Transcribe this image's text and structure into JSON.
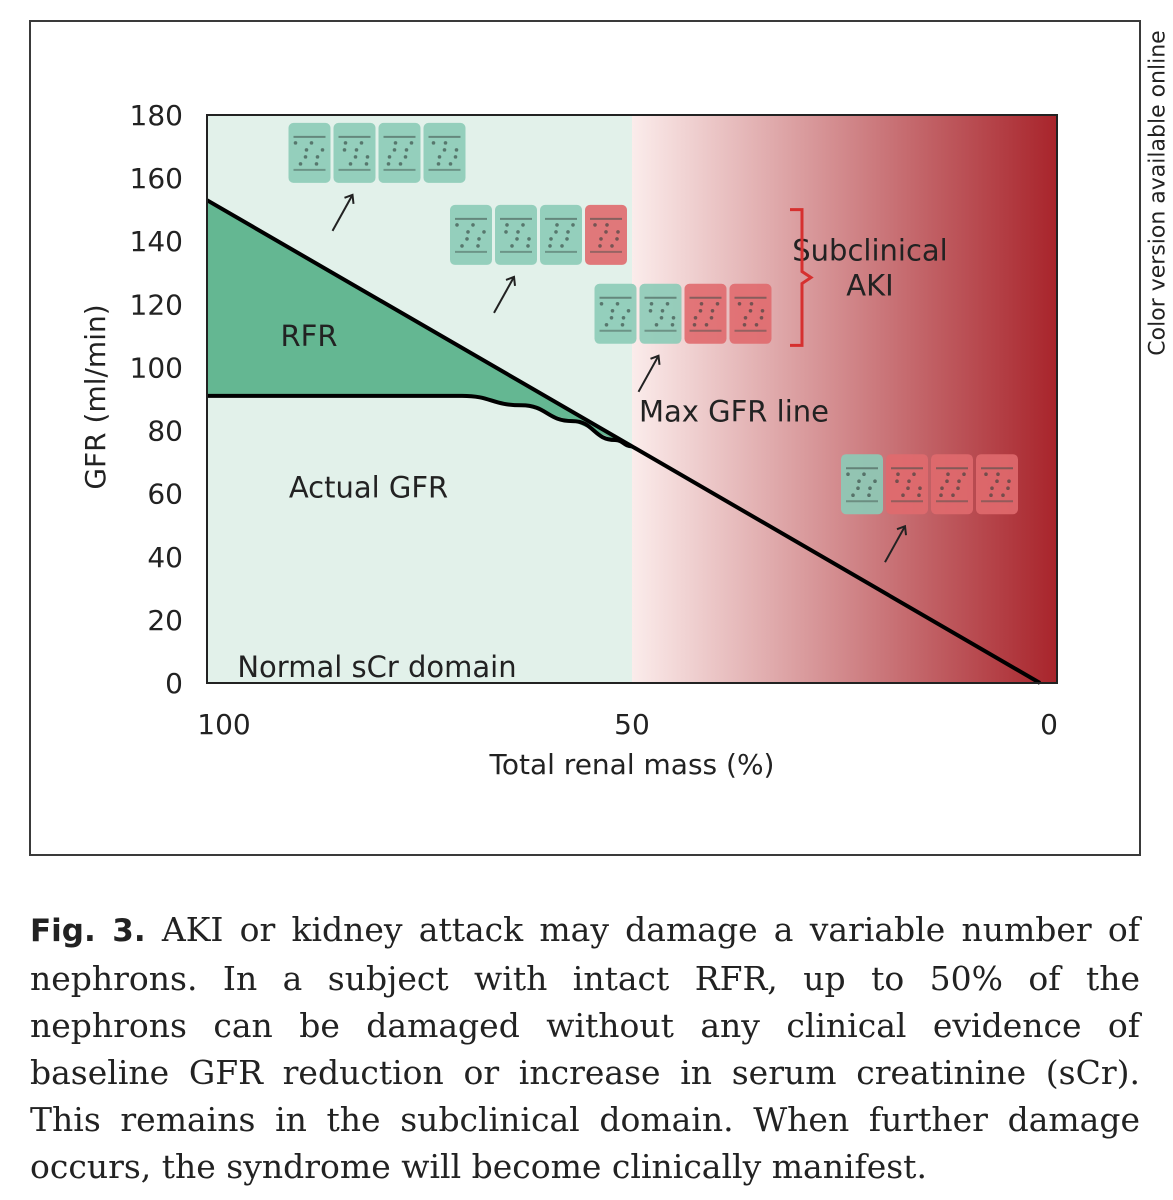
{
  "side_note": "Color version available online",
  "caption": {
    "label": "Fig. 3.",
    "text": " AKI or kidney attack may damage a variable number of nephrons. In a subject with intact RFR, up to 50% of the nephrons can be damaged without any clinical evidence of baseline GFR reduction or increase in serum creatinine (sCr). This remains in the subclinical domain. When further damage occurs, the syndrome will become clinically manifest."
  },
  "colors": {
    "normal_domain": "#e2f1ea",
    "damage_start": "#fbeceb",
    "damage_end": "#a8242b",
    "rfr_fill": "#64b792",
    "healthy_nephron": "#8ccbb7",
    "damaged_nephron": "#e06a6e",
    "bracket": "#d6302f"
  },
  "chart_data": {
    "type": "line",
    "title": "",
    "xlabel": "Total renal mass (%)",
    "ylabel": "GFR (ml/min)",
    "xlim": [
      100,
      0
    ],
    "ylim": [
      0,
      180
    ],
    "x_ticks": [
      100,
      50,
      0
    ],
    "y_ticks": [
      0,
      20,
      40,
      60,
      80,
      100,
      120,
      140,
      160,
      180
    ],
    "grid": false,
    "series": [
      {
        "name": "Max GFR line",
        "x": [
          100,
          50,
          2
        ],
        "y": [
          153,
          75,
          0
        ]
      },
      {
        "name": "Actual GFR",
        "x": [
          100,
          77,
          70,
          63,
          57,
          52,
          50
        ],
        "y": [
          91,
          91,
          91,
          88,
          83,
          77,
          75
        ]
      }
    ],
    "regions": [
      {
        "label": "Normal sCr domain",
        "x_range": [
          100,
          50
        ]
      },
      {
        "label": "RFR",
        "between": [
          "Max GFR line",
          "Actual GFR"
        ],
        "x_range": [
          100,
          50
        ]
      }
    ],
    "annotations": [
      {
        "text": "RFR",
        "x": 88,
        "y": 110
      },
      {
        "text": "Actual GFR",
        "x": 81,
        "y": 62
      },
      {
        "text": "Normal sCr domain",
        "x": 80,
        "y": 5
      },
      {
        "text": "Max GFR line",
        "x": 38,
        "y": 86
      },
      {
        "text": "Subclinical",
        "x": 22,
        "y": 137
      },
      {
        "text": "AKI",
        "x": 22,
        "y": 126
      }
    ],
    "nephron_groups": [
      {
        "x": 80,
        "y": 168,
        "healthy": 4,
        "damaged": 0
      },
      {
        "x": 61,
        "y": 142,
        "healthy": 3,
        "damaged": 1
      },
      {
        "x": 44,
        "y": 117,
        "healthy": 2,
        "damaged": 2
      },
      {
        "x": 15,
        "y": 63,
        "healthy": 1,
        "damaged": 3
      }
    ]
  }
}
